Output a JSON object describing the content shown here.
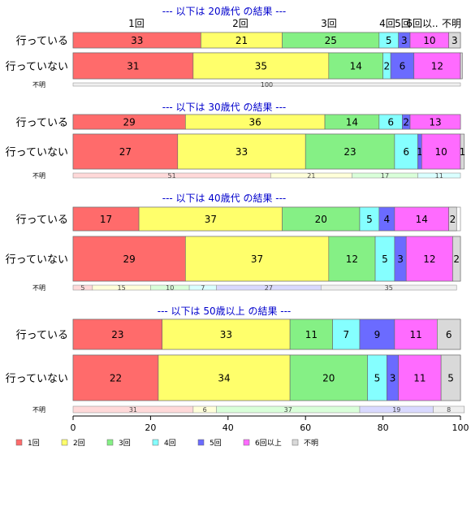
{
  "chart_data": {
    "type": "bar",
    "orientation": "horizontal",
    "stacked": true,
    "xlim": [
      0,
      100
    ],
    "x_ticks": [
      0,
      20,
      40,
      60,
      80,
      100
    ],
    "categories": [
      "1回",
      "2回",
      "3回",
      "4回",
      "5回",
      "6回以上",
      "不明"
    ],
    "legend_labels": [
      "1回",
      "2回",
      "3回",
      "4回",
      "5回",
      "6回以上",
      "不明"
    ],
    "legend_placement": "bottom-left",
    "top_category_labels": [
      "1回",
      "2回",
      "3回",
      "4回",
      "5回",
      "6回以..",
      "不明"
    ],
    "colors": [
      "#ff6b6b",
      "#ffff6b",
      "#85f085",
      "#85ffff",
      "#6b6bff",
      "#ff6bff",
      "#d9d9d9"
    ],
    "bottom_colors": [
      "#ffd9d9",
      "#ffffd9",
      "#d9ffd9",
      "#d9ffff",
      "#d9d9ff",
      "#ffd9ff",
      "#efefef"
    ],
    "grid": false,
    "panels": [
      {
        "title": "--- 以下は 20歳代 の結果 ---",
        "rows": [
          {
            "label": "行っている",
            "values": [
              33,
              21,
              25,
              5,
              3,
              10,
              3
            ],
            "labels": [
              "33",
              "21",
              "25",
              "5",
              "3",
              "10",
              "3"
            ]
          },
          {
            "label": "行っていない",
            "values": [
              31,
              35,
              14,
              2,
              6,
              12,
              0.5
            ],
            "labels": [
              "31",
              "35",
              "14",
              "2",
              "6",
              "12",
              ""
            ]
          }
        ],
        "unknown": {
          "label": "不明",
          "values": [
            0,
            0,
            0,
            0,
            0,
            0,
            100
          ],
          "labels": [
            "",
            "",
            "",
            "",
            "",
            "",
            "100"
          ]
        }
      },
      {
        "title": "--- 以下は 30歳代 の結果 ---",
        "rows": [
          {
            "label": "行っている",
            "values": [
              29,
              36,
              14,
              6,
              2,
              13,
              0
            ],
            "labels": [
              "29",
              "36",
              "14",
              "6",
              "2",
              "13",
              ""
            ]
          },
          {
            "label": "行っていない",
            "values": [
              27,
              33,
              23,
              6,
              1,
              10,
              1
            ],
            "labels": [
              "27",
              "33",
              "23",
              "6",
              "1",
              "10",
              "1"
            ]
          }
        ],
        "unknown": {
          "label": "不明",
          "values": [
            51,
            21,
            17,
            11,
            0,
            0,
            0
          ],
          "labels": [
            "51",
            "21",
            "17",
            "11",
            "",
            "",
            ""
          ]
        }
      },
      {
        "title": "--- 以下は 40歳代 の結果 ---",
        "rows": [
          {
            "label": "行っている",
            "values": [
              17,
              37,
              20,
              5,
              4,
              14,
              2
            ],
            "labels": [
              "17",
              "37",
              "20",
              "5",
              "4",
              "14",
              "2"
            ]
          },
          {
            "label": "行っていない",
            "values": [
              29,
              37,
              12,
              5,
              3,
              12,
              2
            ],
            "labels": [
              "29",
              "37",
              "12",
              "5",
              "3",
              "12",
              "2"
            ]
          }
        ],
        "unknown": {
          "label": "不明",
          "values": [
            5,
            15,
            10,
            7,
            27,
            0,
            35
          ],
          "labels": [
            "5",
            "15",
            "10",
            "7",
            "27",
            "",
            "35"
          ]
        }
      },
      {
        "title": "--- 以下は 50歳以上 の結果 ---",
        "rows": [
          {
            "label": "行っている",
            "values": [
              23,
              33,
              11,
              7,
              9,
              11,
              6
            ],
            "labels": [
              "23",
              "33",
              "11",
              "7",
              "9",
              "11",
              "6"
            ]
          },
          {
            "label": "行っていない",
            "values": [
              22,
              34,
              20,
              5,
              3,
              11,
              5
            ],
            "labels": [
              "22",
              "34",
              "20",
              "5",
              "3",
              "11",
              "5"
            ]
          }
        ],
        "unknown": {
          "label": "不明",
          "values": [
            31,
            6,
            37,
            0,
            19,
            0,
            8
          ],
          "labels": [
            "31",
            "6",
            "37",
            "",
            "19",
            "",
            "8"
          ]
        }
      }
    ]
  }
}
